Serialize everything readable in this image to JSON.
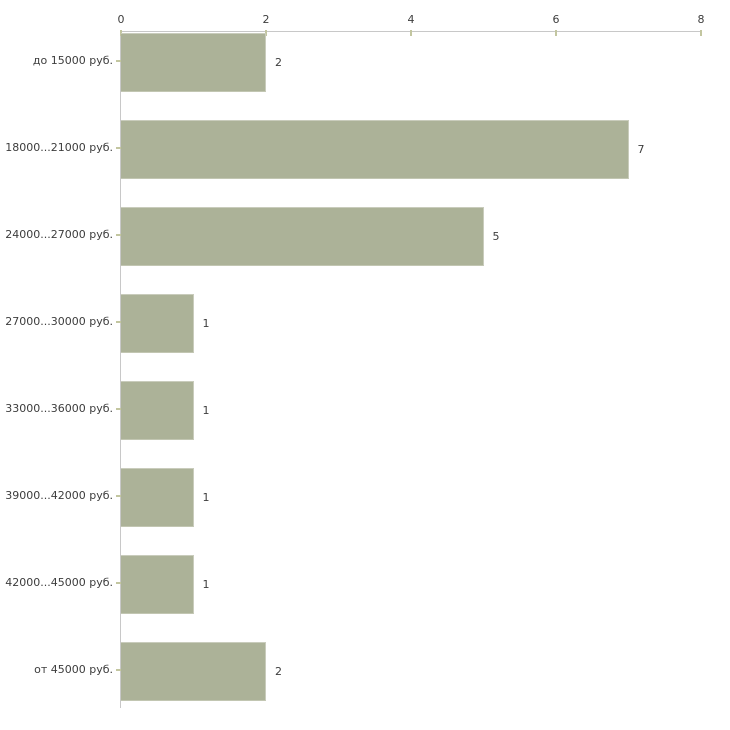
{
  "chart_data": {
    "type": "bar",
    "orientation": "horizontal",
    "title": "",
    "xlabel": "",
    "ylabel": "",
    "categories": [
      "до 15000 руб.",
      "18000...21000 руб.",
      "24000...27000 руб.",
      "27000...30000 руб.",
      "33000...36000 руб.",
      "39000...42000 руб.",
      "42000...45000 руб.",
      "от 45000 руб."
    ],
    "values": [
      2,
      7,
      5,
      1,
      1,
      1,
      1,
      2
    ],
    "value_labels": [
      "2",
      "7",
      "5",
      "1",
      "1",
      "1",
      "1",
      "2"
    ],
    "x_axis": {
      "position": "top",
      "ticks": [
        0,
        2,
        4,
        6,
        8
      ],
      "tick_labels": [
        "0",
        "2",
        "4",
        "6",
        "8"
      ],
      "min": 0,
      "max": 8
    },
    "grid": false,
    "legend": false,
    "colors": {
      "bar_fill": "#acb298",
      "bar_edge": "#c9ccbc",
      "axis_line": "#c8c8c8",
      "tick_mark": "#c3c6a0",
      "text": "#3d3d3d",
      "background": "#ffffff"
    }
  }
}
